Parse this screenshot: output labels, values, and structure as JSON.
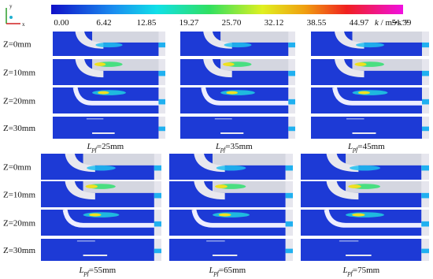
{
  "axes_icon": {
    "y": "y",
    "x": "x"
  },
  "colorbar": {
    "ticks": [
      "0.00",
      "6.42",
      "12.85",
      "19.27",
      "25.70",
      "32.12",
      "38.55",
      "44.97",
      "51.39"
    ],
    "unit_symbol": "k",
    "unit_text": " / m²•s⁻²"
  },
  "groups": [
    {
      "row_labels": [
        "Z=0mm",
        "Z=10mm",
        "Z=20mm",
        "Z=30mm"
      ],
      "panels": [
        {
          "symbol": "L",
          "subscript": "pf",
          "text": "=25mm"
        },
        {
          "symbol": "L",
          "subscript": "pf",
          "text": "=35mm"
        },
        {
          "symbol": "L",
          "subscript": "pf",
          "text": "=45mm"
        }
      ]
    },
    {
      "row_labels": [
        "Z=0mm",
        "Z=10mm",
        "Z=20mm",
        "Z=30mm"
      ],
      "panels": [
        {
          "symbol": "L",
          "subscript": "pf",
          "text": "=55mm"
        },
        {
          "symbol": "L",
          "subscript": "pf",
          "text": "=65mm"
        },
        {
          "symbol": "L",
          "subscript": "pf",
          "text": "=75mm"
        }
      ]
    }
  ]
}
